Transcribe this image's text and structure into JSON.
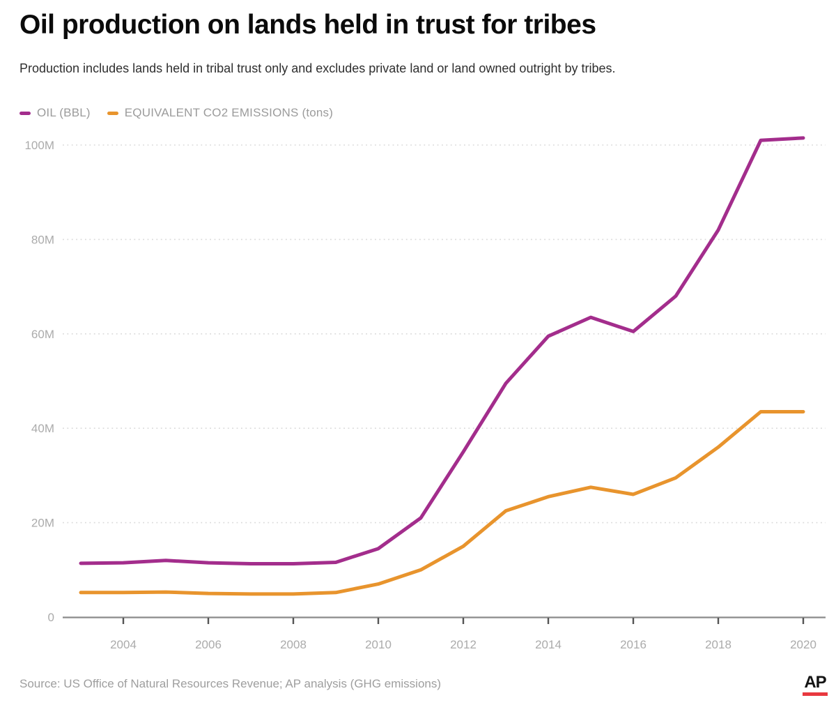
{
  "header": {
    "title": "Oil production on lands held in trust for tribes",
    "subtitle": "Production includes lands held in tribal trust only and excludes private land or land owned outright by tribes."
  },
  "legend": [
    {
      "label": "OIL (BBL)",
      "color": "#a32d8c",
      "swatch_icon": "line-dash-icon"
    },
    {
      "label": "EQUIVALENT CO2 EMISSIONS (tons)",
      "color": "#e8942d",
      "swatch_icon": "line-dash-icon"
    }
  ],
  "chart_data": {
    "type": "line",
    "title": "Oil production on lands held in trust for tribes",
    "xlabel": "",
    "ylabel": "",
    "unit": "millions",
    "x": [
      2003,
      2004,
      2005,
      2006,
      2007,
      2008,
      2009,
      2010,
      2011,
      2012,
      2013,
      2014,
      2015,
      2016,
      2017,
      2018,
      2019,
      2020
    ],
    "series": [
      {
        "name": "OIL (BBL)",
        "color": "#a32d8c",
        "values": [
          11.4,
          11.5,
          12.0,
          11.5,
          11.3,
          11.3,
          11.6,
          14.5,
          21.0,
          35.0,
          49.5,
          59.5,
          63.5,
          60.5,
          68.0,
          82.0,
          101.0,
          101.5
        ]
      },
      {
        "name": "EQUIVALENT CO2 EMISSIONS (tons)",
        "color": "#e8942d",
        "values": [
          5.2,
          5.2,
          5.3,
          5.0,
          4.9,
          4.9,
          5.2,
          7.0,
          10.0,
          15.0,
          22.5,
          25.5,
          27.5,
          26.0,
          29.5,
          36.0,
          43.5,
          43.5
        ]
      }
    ],
    "ylim": [
      0,
      105
    ],
    "ytick_values": [
      0,
      20,
      40,
      60,
      80,
      100
    ],
    "ytick_labels": [
      "0",
      "20M",
      "40M",
      "60M",
      "80M",
      "100M"
    ],
    "xtick_values": [
      2004,
      2006,
      2008,
      2010,
      2012,
      2014,
      2016,
      2018,
      2020
    ],
    "xtick_labels": [
      "2004",
      "2006",
      "2008",
      "2010",
      "2012",
      "2014",
      "2016",
      "2018",
      "2020"
    ],
    "grid": "horizontal-dotted",
    "legend_position": "top-left",
    "axis_color": "#8a8a8a",
    "grid_color": "#d9d9d9",
    "tick_label_color": "#ababab"
  },
  "footer": {
    "source": "Source: US Office of Natural Resources Revenue; AP analysis (GHG emissions)",
    "logo_text": "AP",
    "logo_bar_color": "#e8383f"
  }
}
